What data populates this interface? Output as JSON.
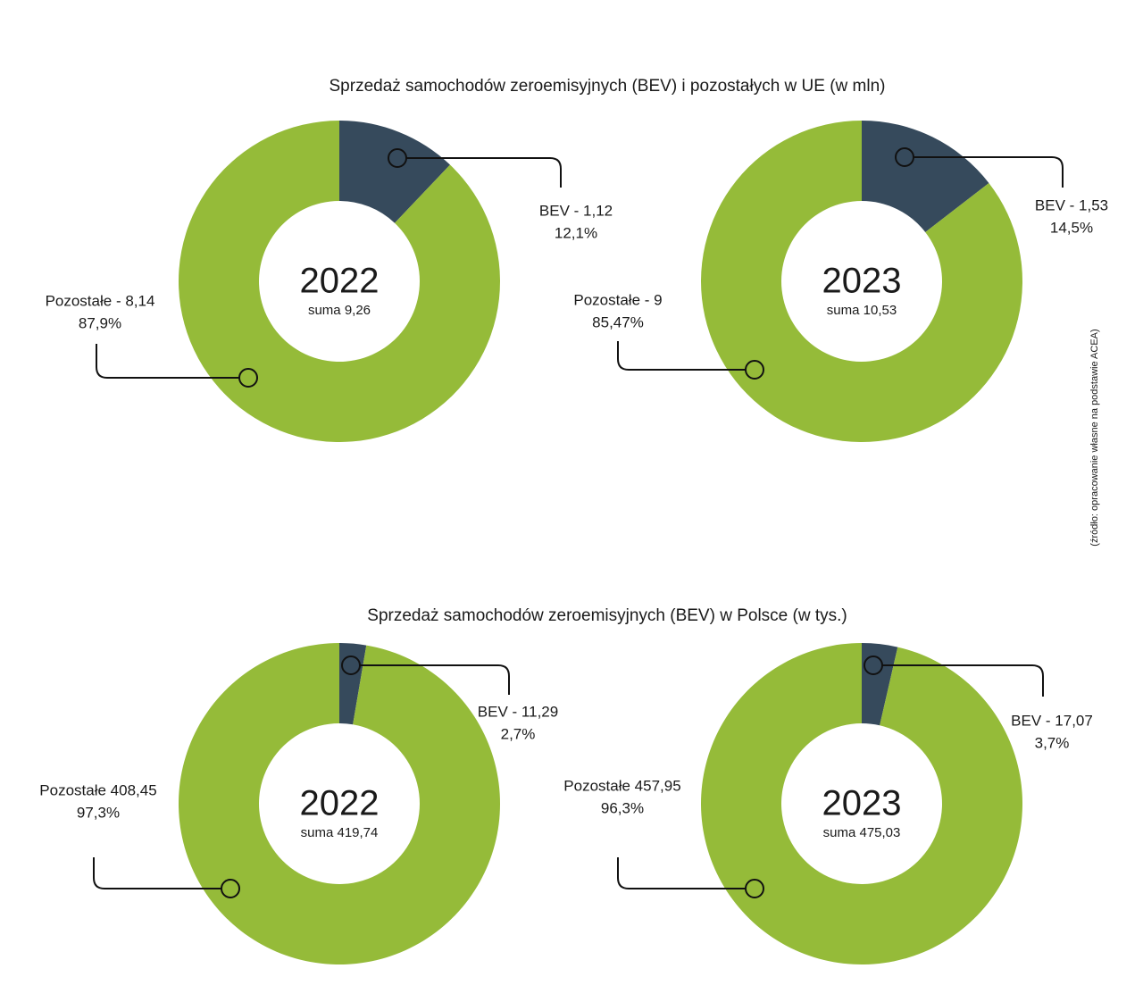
{
  "chart_data": [
    {
      "type": "pie",
      "title": "Sprzedaż samochodów zeroemisyjnych (BEV) i pozostałych w UE (w mln)",
      "year": "2022",
      "total_label": "suma  9,26",
      "values": [
        1.12,
        8.14
      ],
      "value_labels": [
        "BEV - 1,12",
        "Pozostałe - 8,14"
      ],
      "percent_labels": [
        "12,1%",
        "87,9%"
      ],
      "colors": [
        "#364a5c",
        "#95bb39"
      ]
    },
    {
      "type": "pie",
      "year": "2023",
      "total_label": "suma 10,53",
      "values": [
        1.53,
        9
      ],
      "value_labels": [
        "BEV - 1,53",
        "Pozostałe - 9"
      ],
      "percent_labels": [
        "14,5%",
        "85,47%"
      ],
      "colors": [
        "#364a5c",
        "#95bb39"
      ]
    },
    {
      "type": "pie",
      "title": "Sprzedaż samochodów zeroemisyjnych (BEV) w Polsce (w tys.)",
      "year": "2022",
      "total_label": "suma  419,74",
      "values": [
        11.29,
        408.45
      ],
      "value_labels": [
        "BEV - 11,29",
        "Pozostałe 408,45"
      ],
      "percent_labels": [
        "2,7%",
        "97,3%"
      ],
      "colors": [
        "#364a5c",
        "#95bb39"
      ]
    },
    {
      "type": "pie",
      "year": "2023",
      "total_label": "suma 475,03",
      "values": [
        17.07,
        457.95
      ],
      "value_labels": [
        "BEV - 17,07",
        "Pozostałe 457,95"
      ],
      "percent_labels": [
        "3,7%",
        "96,3%"
      ],
      "colors": [
        "#364a5c",
        "#95bb39"
      ]
    }
  ],
  "source": "(źródło: opracowanie własne na podstawie ACEA)"
}
